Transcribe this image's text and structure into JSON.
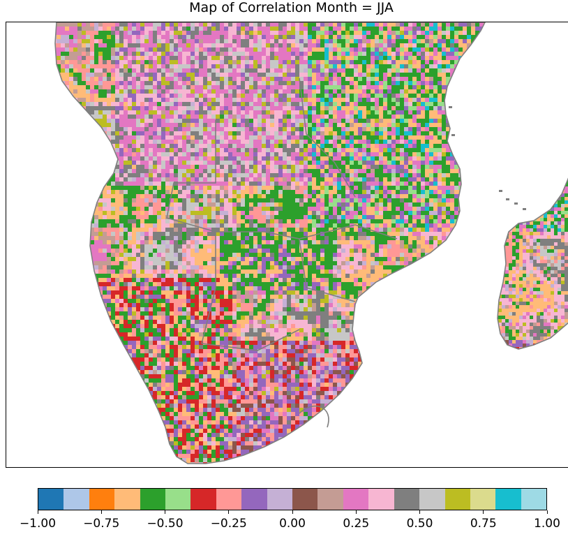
{
  "title": "Map of Correlation Month = JJA",
  "map": {
    "region": "Southern Africa",
    "land_border_color": "#7f7f7f",
    "dominant_classes": [
      9,
      12,
      11,
      7,
      4,
      3,
      13,
      14,
      15,
      16
    ]
  },
  "colorbar": {
    "colors": [
      "#1f77b4",
      "#aec7e8",
      "#ff7f0e",
      "#ffbb78",
      "#2ca02c",
      "#98df8a",
      "#d62728",
      "#ff9896",
      "#9467bd",
      "#c5b0d5",
      "#8c564b",
      "#c49c94",
      "#e377c2",
      "#f7b6d2",
      "#7f7f7f",
      "#c7c7c7",
      "#bcbd22",
      "#dbdb8d",
      "#17becf",
      "#9edae5"
    ],
    "min": -1.0,
    "max": 1.0,
    "tick_values": [
      -1.0,
      -0.75,
      -0.5,
      -0.25,
      0.0,
      0.25,
      0.5,
      0.75,
      1.0
    ],
    "tick_labels": [
      "−1.00",
      "−0.75",
      "−0.50",
      "−0.25",
      "0.00",
      "0.25",
      "0.50",
      "0.75",
      "1.00"
    ]
  }
}
